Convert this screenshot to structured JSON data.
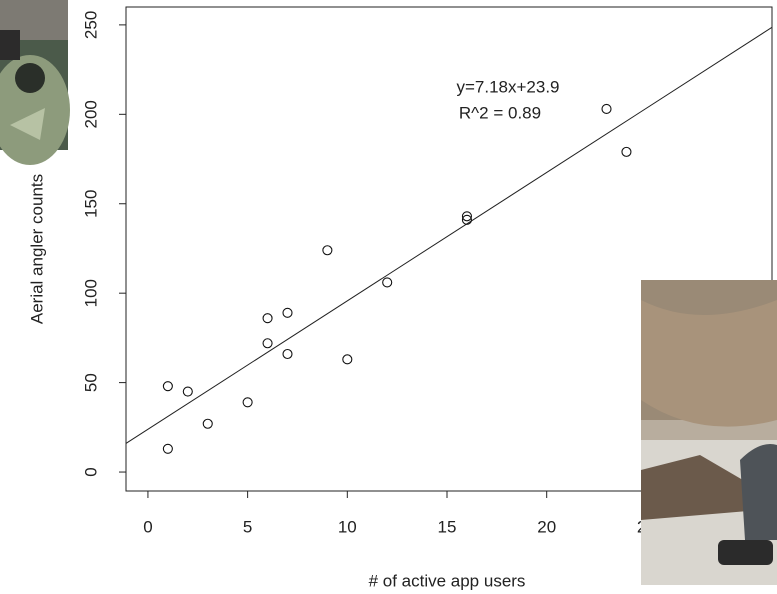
{
  "chart_data": {
    "type": "scatter",
    "xlabel": "# of active app users",
    "ylabel": "Aerial angler counts",
    "annotation": [
      "y=7.18x+23.9",
      "R^2 = 0.89"
    ],
    "fit": {
      "slope": 7.18,
      "intercept": 23.9
    },
    "x": [
      1,
      1,
      2,
      3,
      5,
      6,
      6,
      7,
      7,
      9,
      10,
      12,
      16,
      16,
      23,
      24
    ],
    "y": [
      13,
      48,
      45,
      27,
      39,
      72,
      86,
      89,
      66,
      124,
      63,
      106,
      141,
      143,
      203,
      179
    ],
    "color": "#111111",
    "xlim": [
      -1.1,
      31.3
    ],
    "ylim": [
      -10.6,
      260
    ],
    "xticks": [
      0,
      5,
      10,
      15,
      20,
      25
    ],
    "yticks": [
      0,
      50,
      100,
      150,
      200,
      250
    ]
  }
}
